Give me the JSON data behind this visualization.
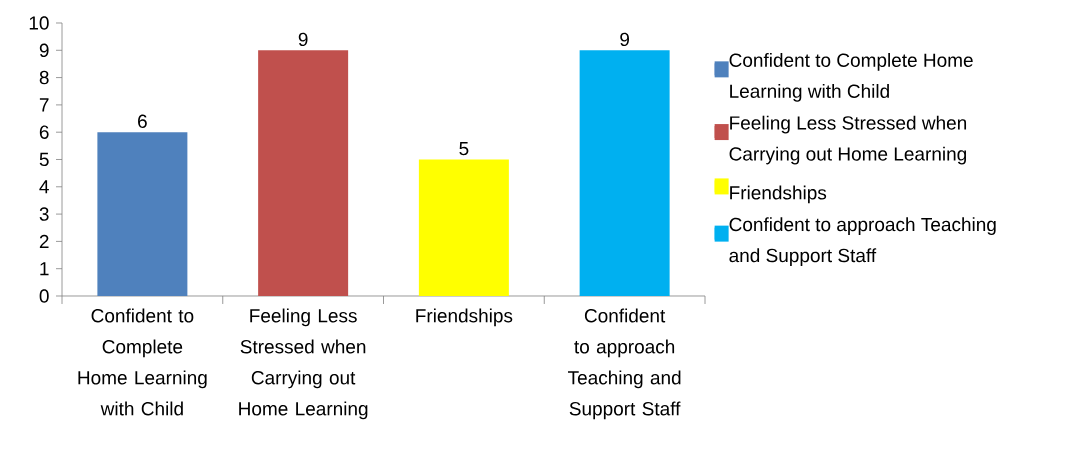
{
  "chart_data": {
    "type": "bar",
    "categories": [
      "Confident to Complete Home Learning with Child",
      "Feeling Less Stressed when Carrying out Home Learning",
      "Friendships",
      "Confident to approach Teaching and Support Staff"
    ],
    "series": [
      {
        "name": "Confident to Complete Home Learning with Child",
        "color": "#4f81bd",
        "values": [
          6,
          null,
          null,
          null
        ]
      },
      {
        "name": "Feeling Less Stressed when Carrying out Home Learning",
        "color": "#c0504d",
        "values": [
          null,
          9,
          null,
          null
        ]
      },
      {
        "name": "Friendships",
        "color": "#ffff00",
        "values": [
          null,
          null,
          5,
          null
        ]
      },
      {
        "name": "Confident to approach Teaching and Support Staff",
        "color": "#00b0f0",
        "values": [
          null,
          null,
          null,
          9
        ]
      }
    ],
    "ylim": [
      0,
      10
    ],
    "yticks": [
      0,
      1,
      2,
      3,
      4,
      5,
      6,
      7,
      8,
      9,
      10
    ],
    "data_labels": true,
    "legend": "right"
  }
}
